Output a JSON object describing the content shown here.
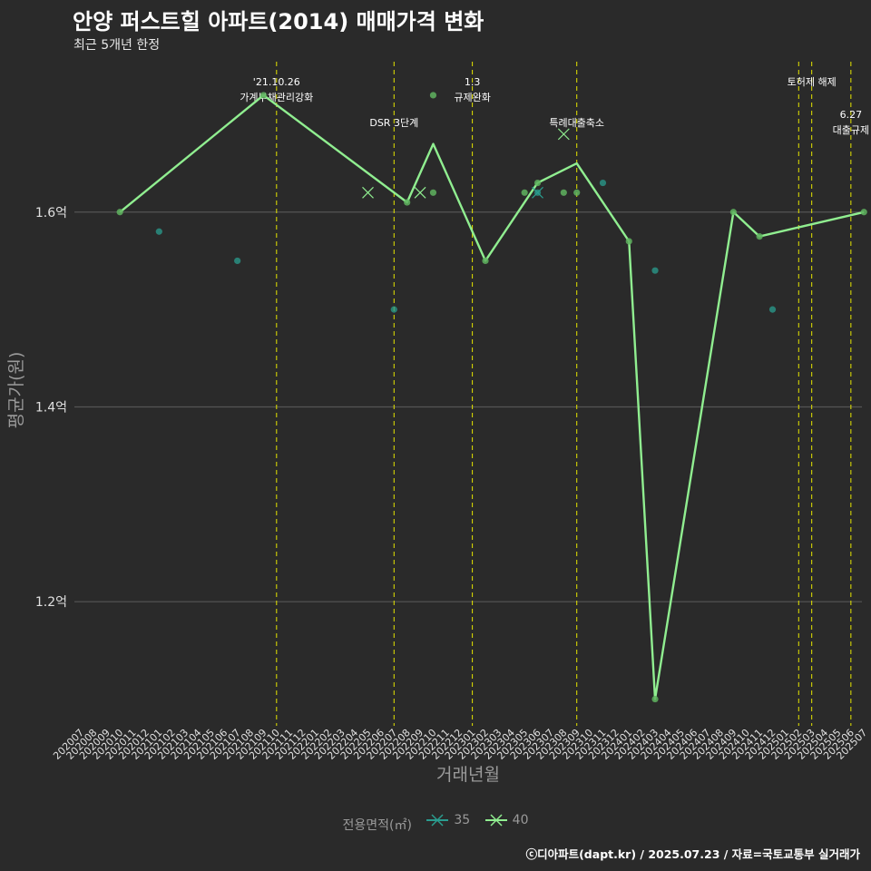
{
  "title": "안양 퍼스트힐 아파트(2014) 매매가격 변화",
  "subtitle": "최근 5개년 한정",
  "caption": "ⓒ디아파트(dapt.kr) / 2025.07.23 / 자료=국토교통부 실거래가",
  "colors": {
    "background": "#2a2a2a",
    "series_35": "#2a9d8f",
    "series_40": "#90ee90",
    "event_line": "#e6e600",
    "grid": "#555555"
  },
  "chart_data": {
    "type": "line",
    "title": "안양 퍼스트힐 아파트(2014) 매매가격 변화",
    "subtitle": "최근 5개년 한정",
    "xlabel": "거래년월",
    "ylabel": "평균가(원)",
    "ylim": [
      1.08,
      1.76
    ],
    "yticks": [
      {
        "value": 1.2,
        "label": "1.2억"
      },
      {
        "value": 1.4,
        "label": "1.4억"
      },
      {
        "value": 1.6,
        "label": "1.6억"
      }
    ],
    "categories": [
      "202007",
      "202008",
      "202009",
      "202010",
      "202011",
      "202012",
      "202101",
      "202102",
      "202103",
      "202104",
      "202105",
      "202106",
      "202107",
      "202108",
      "202109",
      "202110",
      "202111",
      "202112",
      "202201",
      "202202",
      "202203",
      "202204",
      "202205",
      "202206",
      "202207",
      "202208",
      "202209",
      "202210",
      "202211",
      "202212",
      "202301",
      "202302",
      "202303",
      "202304",
      "202305",
      "202306",
      "202307",
      "202308",
      "202309",
      "202310",
      "202311",
      "202312",
      "202401",
      "202402",
      "202403",
      "202404",
      "202405",
      "202406",
      "202407",
      "202408",
      "202409",
      "202410",
      "202411",
      "202412",
      "202501",
      "202502",
      "202503",
      "202504",
      "202505",
      "202506",
      "202507"
    ],
    "legend_title": "전용면적(㎡)",
    "series": [
      {
        "name": "35",
        "points": [
          [
            "202101",
            1.58
          ],
          [
            "202107",
            1.55
          ],
          [
            "202207",
            1.5
          ],
          [
            "202306",
            1.62
          ],
          [
            "202311",
            1.63
          ],
          [
            "202403",
            1.54
          ],
          [
            "202412",
            1.5
          ]
        ],
        "crosses": [
          [
            "202306",
            1.62
          ]
        ]
      },
      {
        "name": "40",
        "line": [
          [
            "202010",
            1.6
          ],
          [
            "202109",
            1.72
          ],
          [
            "202208",
            1.61
          ],
          [
            "202210",
            1.67
          ],
          [
            "202302",
            1.55
          ],
          [
            "202306",
            1.63
          ],
          [
            "202309",
            1.65
          ],
          [
            "202401",
            1.57
          ],
          [
            "202403",
            1.1
          ],
          [
            "202409",
            1.6
          ],
          [
            "202411",
            1.575
          ],
          [
            "202507",
            1.6
          ]
        ],
        "points": [
          [
            "202010",
            1.6
          ],
          [
            "202109",
            1.72
          ],
          [
            "202208",
            1.61
          ],
          [
            "202210",
            1.72
          ],
          [
            "202210",
            1.62
          ],
          [
            "202302",
            1.55
          ],
          [
            "202305",
            1.62
          ],
          [
            "202306",
            1.63
          ],
          [
            "202308",
            1.62
          ],
          [
            "202309",
            1.62
          ],
          [
            "202401",
            1.57
          ],
          [
            "202403",
            1.1
          ],
          [
            "202409",
            1.6
          ],
          [
            "202411",
            1.575
          ],
          [
            "202507",
            1.6
          ]
        ],
        "crosses": [
          [
            "202205",
            1.62
          ],
          [
            "202209",
            1.62
          ],
          [
            "202308",
            1.68
          ]
        ]
      }
    ],
    "events": [
      {
        "x": "202110",
        "label": "'21.10.26\n가계부채관리강화",
        "row": 1
      },
      {
        "x": "202207",
        "label": "DSR 3단계",
        "row": 2
      },
      {
        "x": "202301",
        "label": "1.3\n규제완화",
        "row": 1
      },
      {
        "x": "202309",
        "label": "특례대출축소",
        "row": 2
      },
      {
        "x": "202502",
        "label": "",
        "row": 1
      },
      {
        "x": "202503",
        "label": "토허제 해제",
        "row": 1
      },
      {
        "x": "202506",
        "label": "6.27\n대출규제",
        "row": 3
      }
    ]
  }
}
